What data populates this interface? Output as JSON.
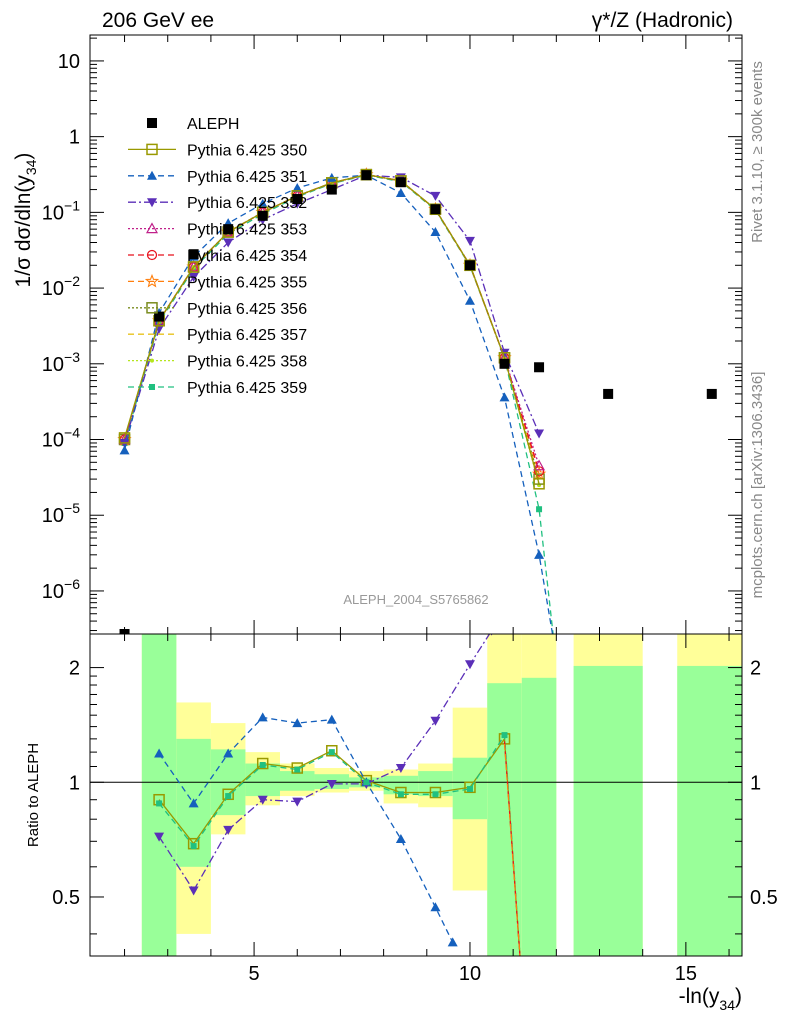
{
  "header": {
    "left": "206 GeV ee",
    "right": "γ*/Z (Hadronic)"
  },
  "side_text": {
    "rivet": "Rivet 3.1.10, ≥ 300k events",
    "mcplots": "mcplots.cern.ch [arXiv:1306.3436]"
  },
  "watermark": "ALEPH_2004_S5765862",
  "chart_data": [
    {
      "type": "line",
      "panel": "main",
      "ylabel": "1/σ dσ/dln(y34)",
      "ylabel_parts": [
        "1/σ  dσ/dln(y",
        "34",
        ")"
      ],
      "yscale": "log",
      "xlim": [
        1.2,
        16.3
      ],
      "ylim": [
        2.7e-07,
        22
      ],
      "y_ticks": [
        {
          "v": 1e-06,
          "base": "10",
          "exp": "−6"
        },
        {
          "v": 1e-05,
          "base": "10",
          "exp": "−5"
        },
        {
          "v": 0.0001,
          "base": "10",
          "exp": "−4"
        },
        {
          "v": 0.001,
          "base": "10",
          "exp": "−3"
        },
        {
          "v": 0.01,
          "base": "10",
          "exp": "−2"
        },
        {
          "v": 0.1,
          "base": "10",
          "exp": "−1"
        },
        {
          "v": 1,
          "base": "1",
          "exp": ""
        },
        {
          "v": 10,
          "base": "10",
          "exp": ""
        }
      ],
      "legend_position": "top-left",
      "data": {
        "name": "ALEPH",
        "x": [
          2.0,
          2.8,
          3.6,
          4.4,
          5.2,
          6.0,
          6.8,
          7.6,
          8.4,
          9.2,
          10.0,
          10.8,
          11.6,
          13.2,
          15.6
        ],
        "y": [
          2.7e-07,
          0.0042,
          0.028,
          0.06,
          0.09,
          0.15,
          0.2,
          0.31,
          0.25,
          0.11,
          0.02,
          0.001,
          0.0009,
          0.0004,
          0.0004
        ]
      },
      "series": [
        {
          "name": "Pythia 6.425 350",
          "color": "#999900",
          "marker": "square-open",
          "dash": "solid",
          "x": [
            2.0,
            2.8,
            3.6,
            4.4,
            5.2,
            6.0,
            6.8,
            7.6,
            8.4,
            9.2,
            10.0,
            10.8,
            11.6
          ],
          "y": [
            0.000105,
            0.0037,
            0.019,
            0.055,
            0.1,
            0.165,
            0.245,
            0.315,
            0.26,
            0.11,
            0.02,
            0.0012,
            2.6e-05
          ]
        },
        {
          "name": "Pythia 6.425 351",
          "color": "#1560bd",
          "marker": "triangle-up",
          "dash": "6,4",
          "x": [
            2.0,
            2.8,
            3.6,
            4.4,
            5.2,
            6.0,
            6.8,
            7.6,
            8.4,
            9.2,
            10.0,
            10.8,
            11.6,
            11.95
          ],
          "y": [
            7.2e-05,
            0.0047,
            0.026,
            0.072,
            0.13,
            0.21,
            0.285,
            0.31,
            0.18,
            0.055,
            0.0068,
            0.00036,
            3e-06,
            2e-07
          ]
        },
        {
          "name": "Pythia 6.425 352",
          "color": "#5b2fb8",
          "marker": "triangle-down",
          "dash": "8,3,2,3",
          "x": [
            2.0,
            2.8,
            3.6,
            4.4,
            5.2,
            6.0,
            6.8,
            7.6,
            8.4,
            9.2,
            10.0,
            10.8,
            11.6
          ],
          "y": [
            9e-05,
            0.0029,
            0.014,
            0.04,
            0.08,
            0.13,
            0.2,
            0.31,
            0.29,
            0.165,
            0.042,
            0.0014,
            0.00012
          ]
        },
        {
          "name": "Pythia 6.425 353",
          "color": "#c0208a",
          "marker": "triangle-open",
          "dash": "2,2",
          "x": [
            2.0,
            2.8,
            3.6,
            4.4,
            5.2,
            6.0,
            6.8,
            7.6,
            8.4,
            9.2,
            10.0,
            10.8,
            11.6
          ],
          "y": [
            0.0001,
            0.0037,
            0.019,
            0.055,
            0.1,
            0.165,
            0.245,
            0.315,
            0.26,
            0.11,
            0.02,
            0.0012,
            4.5e-05
          ]
        },
        {
          "name": "Pythia 6.425 354",
          "color": "#e8101c",
          "marker": "circle-open",
          "dash": "6,4",
          "x": [
            2.0,
            2.8,
            3.6,
            4.4,
            5.2,
            6.0,
            6.8,
            7.6,
            8.4,
            9.2,
            10.0,
            10.8,
            11.6
          ],
          "y": [
            0.0001,
            0.0037,
            0.019,
            0.055,
            0.1,
            0.165,
            0.245,
            0.315,
            0.26,
            0.11,
            0.02,
            0.0012,
            3.8e-05
          ]
        },
        {
          "name": "Pythia 6.425 355",
          "color": "#ff7f0e",
          "marker": "star-open",
          "dash": "6,4",
          "x": [
            2.0,
            2.8,
            3.6,
            4.4,
            5.2,
            6.0,
            6.8,
            7.6,
            8.4,
            9.2,
            10.0,
            10.8,
            11.6
          ],
          "y": [
            0.0001,
            0.0037,
            0.019,
            0.055,
            0.1,
            0.165,
            0.245,
            0.315,
            0.26,
            0.11,
            0.02,
            0.0012,
            3.5e-05
          ]
        },
        {
          "name": "Pythia 6.425 356",
          "color": "#7a8c1e",
          "marker": "square-open",
          "dash": "2,2",
          "x": [
            2.0,
            2.8,
            3.6,
            4.4,
            5.2,
            6.0,
            6.8,
            7.6,
            8.4,
            9.2,
            10.0,
            10.8,
            11.6
          ],
          "y": [
            0.0001,
            0.0037,
            0.019,
            0.055,
            0.1,
            0.165,
            0.245,
            0.315,
            0.26,
            0.11,
            0.02,
            0.0012,
            3e-05
          ]
        },
        {
          "name": "Pythia 6.425 357",
          "color": "#e8c21c",
          "marker": "none",
          "dash": "6,4",
          "x": [
            2.0,
            2.8,
            3.6,
            4.4,
            5.2,
            6.0,
            6.8,
            7.6,
            8.4,
            9.2,
            10.0,
            10.8,
            11.6
          ],
          "y": [
            0.0001,
            0.0037,
            0.019,
            0.055,
            0.1,
            0.165,
            0.245,
            0.315,
            0.26,
            0.11,
            0.02,
            0.0012,
            2.8e-05
          ]
        },
        {
          "name": "Pythia 6.425 358",
          "color": "#b5e61d",
          "marker": "dot",
          "dash": "2,2",
          "x": [
            2.0,
            2.8,
            3.6,
            4.4,
            5.2,
            6.0,
            6.8,
            7.6,
            8.4,
            9.2,
            10.0,
            10.8,
            11.6
          ],
          "y": [
            0.0001,
            0.0037,
            0.019,
            0.055,
            0.1,
            0.165,
            0.245,
            0.315,
            0.26,
            0.11,
            0.02,
            0.0012,
            2.5e-05
          ]
        },
        {
          "name": "Pythia 6.425 359",
          "color": "#20c080",
          "marker": "square-filled",
          "dash": "6,4",
          "x": [
            2.0,
            2.8,
            3.6,
            4.4,
            5.2,
            6.0,
            6.8,
            7.6,
            8.4,
            9.2,
            10.0,
            10.8,
            11.6,
            11.95
          ],
          "y": [
            9e-05,
            0.0035,
            0.018,
            0.052,
            0.095,
            0.16,
            0.24,
            0.31,
            0.255,
            0.107,
            0.0195,
            0.0012,
            1.2e-05,
            2e-07
          ]
        }
      ]
    },
    {
      "type": "line",
      "panel": "ratio",
      "ylabel": "Ratio to ALEPH",
      "xlabel": "-ln(y34)",
      "xlabel_parts": [
        "-ln(y",
        "34",
        ")"
      ],
      "yscale": "log",
      "xlim": [
        1.2,
        16.3
      ],
      "ylim": [
        0.35,
        2.45
      ],
      "x_ticks": [
        5,
        10,
        15
      ],
      "y_ticks": [
        0.5,
        1,
        2
      ],
      "reference_line": 1,
      "uncertainty_bands": [
        {
          "x0": 2.4,
          "x1": 3.2,
          "yellow": [
            0.2,
            5.0
          ],
          "green": [
            0.2,
            5.0
          ]
        },
        {
          "x0": 3.2,
          "x1": 4.0,
          "yellow": [
            0.4,
            1.62
          ],
          "green": [
            0.6,
            1.3
          ]
        },
        {
          "x0": 4.0,
          "x1": 4.8,
          "yellow": [
            0.73,
            1.43
          ],
          "green": [
            0.82,
            1.22
          ]
        },
        {
          "x0": 4.8,
          "x1": 5.6,
          "yellow": [
            0.87,
            1.2
          ],
          "green": [
            0.92,
            1.12
          ]
        },
        {
          "x0": 5.6,
          "x1": 6.4,
          "yellow": [
            0.92,
            1.12
          ],
          "green": [
            0.95,
            1.07
          ]
        },
        {
          "x0": 6.4,
          "x1": 7.2,
          "yellow": [
            0.94,
            1.09
          ],
          "green": [
            0.96,
            1.05
          ]
        },
        {
          "x0": 7.2,
          "x1": 8.0,
          "yellow": [
            0.95,
            1.07
          ],
          "green": [
            0.97,
            1.03
          ]
        },
        {
          "x0": 8.0,
          "x1": 8.8,
          "yellow": [
            0.88,
            1.08
          ],
          "green": [
            0.93,
            1.04
          ]
        },
        {
          "x0": 8.8,
          "x1": 9.6,
          "yellow": [
            0.86,
            1.12
          ],
          "green": [
            0.92,
            1.07
          ]
        },
        {
          "x0": 9.6,
          "x1": 10.4,
          "yellow": [
            0.52,
            1.57
          ],
          "green": [
            0.8,
            1.16
          ]
        },
        {
          "x0": 10.4,
          "x1": 11.2,
          "yellow": [
            0.2,
            5.0
          ],
          "green": [
            0.2,
            1.82
          ]
        },
        {
          "x0": 11.2,
          "x1": 12.0,
          "yellow": [
            0.2,
            5.0
          ],
          "green": [
            0.2,
            1.88
          ]
        },
        {
          "x0": 12.4,
          "x1": 14.0,
          "yellow": [
            0.2,
            5.0
          ],
          "green": [
            0.2,
            2.02
          ]
        },
        {
          "x0": 14.8,
          "x1": 16.4,
          "yellow": [
            0.2,
            5.0
          ],
          "green": [
            0.2,
            2.02
          ]
        }
      ],
      "series": [
        {
          "name": "Pythia 6.425 350",
          "color": "#999900",
          "marker": "square-open",
          "dash": "solid",
          "x": [
            2.8,
            3.6,
            4.4,
            5.2,
            6.0,
            6.8,
            7.6,
            8.4,
            9.2,
            10.0,
            10.8,
            11.2
          ],
          "y": [
            0.9,
            0.69,
            0.93,
            1.12,
            1.09,
            1.21,
            1.01,
            0.94,
            0.94,
            0.97,
            1.3,
            0.3
          ]
        },
        {
          "name": "Pythia 6.425 351",
          "color": "#1560bd",
          "marker": "triangle-up",
          "dash": "6,4",
          "x": [
            2.8,
            3.6,
            4.4,
            5.2,
            6.0,
            6.8,
            7.6,
            8.4,
            9.2,
            9.6
          ],
          "y": [
            1.19,
            0.88,
            1.19,
            1.48,
            1.43,
            1.46,
            1.0,
            0.71,
            0.47,
            0.38
          ]
        },
        {
          "name": "Pythia 6.425 352",
          "color": "#5b2fb8",
          "marker": "triangle-down",
          "dash": "8,3,2,3",
          "x": [
            2.8,
            3.6,
            4.4,
            5.2,
            6.0,
            6.8,
            7.6,
            8.4,
            9.2,
            10.0,
            10.5
          ],
          "y": [
            0.72,
            0.52,
            0.75,
            0.9,
            0.89,
            0.99,
            0.99,
            1.09,
            1.45,
            2.04,
            2.5
          ]
        },
        {
          "name": "Pythia 6.425 359",
          "color": "#20c080",
          "marker": "square-filled",
          "dash": "6,4",
          "x": [
            2.8,
            3.6,
            4.4,
            5.2,
            6.0,
            6.8,
            7.6,
            8.4,
            9.2,
            10.0,
            10.8,
            11.2
          ],
          "y": [
            0.88,
            0.68,
            0.92,
            1.11,
            1.08,
            1.2,
            1.0,
            0.93,
            0.93,
            0.96,
            1.33,
            0.3
          ]
        },
        {
          "name": "Pythia 6.425 354",
          "color": "#e8101c",
          "marker": "none",
          "dash": "6,4",
          "x": [
            10.8,
            11.2
          ],
          "y": [
            1.28,
            0.3
          ]
        },
        {
          "name": "Pythia 6.425 355",
          "color": "#ff7f0e",
          "marker": "none",
          "dash": "6,4",
          "x": [
            10.8,
            11.2
          ],
          "y": [
            1.26,
            0.3
          ]
        }
      ]
    }
  ]
}
